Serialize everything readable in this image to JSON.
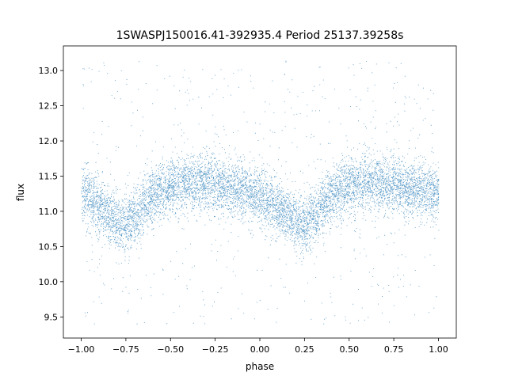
{
  "chart_data": {
    "type": "scatter",
    "title": "1SWASPJ150016.41-392935.4 Period 25137.39258s",
    "xlabel": "phase",
    "ylabel": "flux",
    "xlim": [
      -1.1,
      1.1
    ],
    "ylim": [
      9.2,
      13.35
    ],
    "xticks": [
      -1.0,
      -0.75,
      -0.5,
      -0.25,
      0.0,
      0.25,
      0.5,
      0.75,
      1.0
    ],
    "xtick_labels": [
      "−1.00",
      "−0.75",
      "−0.50",
      "−0.25",
      "0.00",
      "0.25",
      "0.50",
      "0.75",
      "1.00"
    ],
    "yticks": [
      9.5,
      10.0,
      10.5,
      11.0,
      11.5,
      12.0,
      12.5,
      13.0
    ],
    "ytick_labels": [
      "9.5",
      "10.0",
      "10.5",
      "11.0",
      "11.5",
      "12.0",
      "12.5",
      "13.0"
    ],
    "grid": false,
    "marker_color": "#1f77b4",
    "series": [
      {
        "x_range": [
          -1.0,
          1.0
        ],
        "phase": [
          -1.0,
          -0.9,
          -0.8,
          -0.75,
          -0.7,
          -0.6,
          -0.5,
          -0.4,
          -0.3,
          -0.25,
          -0.2,
          -0.1,
          0.0,
          0.1,
          0.2,
          0.25,
          0.3,
          0.4,
          0.5,
          0.6,
          0.7,
          0.75,
          0.8,
          0.9,
          1.0
        ],
        "flux_median": [
          11.25,
          11.1,
          10.85,
          10.82,
          10.95,
          11.25,
          11.38,
          11.4,
          11.42,
          11.4,
          11.38,
          11.3,
          11.2,
          11.05,
          10.85,
          10.8,
          10.95,
          11.25,
          11.38,
          11.4,
          11.4,
          11.38,
          11.35,
          11.3,
          11.25
        ]
      }
    ]
  }
}
